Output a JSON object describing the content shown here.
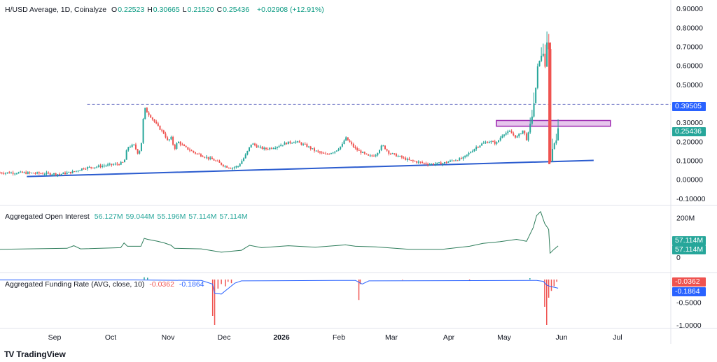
{
  "header": {
    "symbol": "H/USD Average, 1D, Coinalyze",
    "ohlc": [
      {
        "label": "O",
        "value": "0.22523"
      },
      {
        "label": "H",
        "value": "0.30665"
      },
      {
        "label": "L",
        "value": "0.21520"
      },
      {
        "label": "C",
        "value": "0.25436"
      }
    ],
    "change": "+0.02908 (+12.91%)"
  },
  "open_interest_legend": {
    "title": "Aggregated Open Interest",
    "values": [
      "56.127M",
      "59.044M",
      "55.196M",
      "57.114M",
      "57.114M"
    ]
  },
  "funding_legend": {
    "title": "Aggregated Funding Rate (AVG, close, 10)",
    "values": [
      "-0.0362",
      "-0.1864"
    ]
  },
  "price_tags": {
    "level": "0.39505",
    "last": "0.25436",
    "oi_1": "57.114M",
    "oi_2": "57.114M",
    "fr_1": "-0.0362",
    "fr_2": "-0.1864"
  },
  "colors": {
    "up": "#26a69a",
    "down": "#ef5350",
    "trendline": "#2b5ccf",
    "level_dashed": "#7b80c9",
    "zone_fill": "#e6c6ec",
    "zone_border": "#9c27b0",
    "oi_line": "#2e7d5b",
    "funding_avg": "#2962ff",
    "tag_level": "#2962ff",
    "tag_last": "#26a69a",
    "tag_oi": "#26a69a",
    "tag_fr_1": "#ef5350",
    "tag_fr_2": "#2962ff"
  },
  "footer": {
    "brand": "TradingView",
    "logo": "tradingview-logo"
  },
  "chart_data": [
    {
      "type": "candlestick",
      "title": "H/USD Average, 1D, Coinalyze",
      "y_ticks": [
        "0.90000",
        "0.80000",
        "0.70000",
        "0.60000",
        "0.50000",
        "0.30000",
        "0.20000",
        "0.10000",
        "0.00000",
        "-0.10000"
      ],
      "ylim": [
        -0.13,
        0.93
      ],
      "x_ticks": [
        "Sep",
        "Oct",
        "Nov",
        "Dec",
        "2026",
        "Feb",
        "Mar",
        "Apr",
        "May",
        "Jun",
        "Jul"
      ],
      "close_path": [
        [
          0.03,
          0.035
        ],
        [
          0.055,
          0.032
        ],
        [
          0.09,
          0.028
        ],
        [
          0.11,
          0.04
        ],
        [
          0.125,
          0.06
        ],
        [
          0.14,
          0.065
        ],
        [
          0.16,
          0.075
        ],
        [
          0.175,
          0.08
        ],
        [
          0.185,
          0.09
        ],
        [
          0.19,
          0.17
        ],
        [
          0.2,
          0.18
        ],
        [
          0.205,
          0.14
        ],
        [
          0.21,
          0.16
        ],
        [
          0.215,
          0.38
        ],
        [
          0.22,
          0.35
        ],
        [
          0.225,
          0.33
        ],
        [
          0.235,
          0.28
        ],
        [
          0.245,
          0.24
        ],
        [
          0.25,
          0.2
        ],
        [
          0.255,
          0.22
        ],
        [
          0.26,
          0.16
        ],
        [
          0.265,
          0.2
        ],
        [
          0.275,
          0.17
        ],
        [
          0.29,
          0.14
        ],
        [
          0.305,
          0.12
        ],
        [
          0.32,
          0.1
        ],
        [
          0.335,
          0.07
        ],
        [
          0.345,
          0.06
        ],
        [
          0.355,
          0.07
        ],
        [
          0.365,
          0.12
        ],
        [
          0.375,
          0.19
        ],
        [
          0.385,
          0.17
        ],
        [
          0.395,
          0.16
        ],
        [
          0.41,
          0.17
        ],
        [
          0.425,
          0.19
        ],
        [
          0.44,
          0.2
        ],
        [
          0.455,
          0.18
        ],
        [
          0.47,
          0.15
        ],
        [
          0.485,
          0.13
        ],
        [
          0.5,
          0.15
        ],
        [
          0.51,
          0.18
        ],
        [
          0.515,
          0.22
        ],
        [
          0.52,
          0.2
        ],
        [
          0.53,
          0.16
        ],
        [
          0.54,
          0.14
        ],
        [
          0.55,
          0.12
        ],
        [
          0.56,
          0.13
        ],
        [
          0.57,
          0.18
        ],
        [
          0.58,
          0.14
        ],
        [
          0.595,
          0.12
        ],
        [
          0.61,
          0.1
        ],
        [
          0.625,
          0.09
        ],
        [
          0.64,
          0.08
        ],
        [
          0.66,
          0.085
        ],
        [
          0.675,
          0.1
        ],
        [
          0.69,
          0.11
        ],
        [
          0.7,
          0.14
        ],
        [
          0.71,
          0.17
        ],
        [
          0.72,
          0.19
        ],
        [
          0.73,
          0.2
        ],
        [
          0.74,
          0.19
        ],
        [
          0.75,
          0.24
        ],
        [
          0.76,
          0.25
        ],
        [
          0.77,
          0.22
        ],
        [
          0.78,
          0.26
        ],
        [
          0.785,
          0.21
        ],
        [
          0.79,
          0.27
        ],
        [
          0.795,
          0.38
        ],
        [
          0.8,
          0.5
        ],
        [
          0.803,
          0.66
        ],
        [
          0.806,
          0.61
        ],
        [
          0.809,
          0.7
        ],
        [
          0.812,
          0.58
        ],
        [
          0.816,
          0.73
        ],
        [
          0.818,
          0.72
        ],
        [
          0.82,
          0.09
        ],
        [
          0.823,
          0.15
        ],
        [
          0.826,
          0.19
        ],
        [
          0.829,
          0.22
        ],
        [
          0.832,
          0.25436
        ]
      ],
      "annotations": {
        "horizontal_level": 0.39505,
        "resistance_zone": [
          0.28,
          0.31
        ],
        "trendline": [
          [
            0.04,
            0.015
          ],
          [
            0.885,
            0.1
          ]
        ]
      }
    },
    {
      "type": "line",
      "title": "Aggregated Open Interest",
      "y_ticks": [
        "200M",
        "0"
      ],
      "series": [
        {
          "name": "Aggregated Open Interest",
          "values": [
            [
              0.0,
              40
            ],
            [
              0.1,
              45
            ],
            [
              0.11,
              58
            ],
            [
              0.12,
              42
            ],
            [
              0.18,
              48
            ],
            [
              0.185,
              72
            ],
            [
              0.19,
              55
            ],
            [
              0.21,
              55
            ],
            [
              0.215,
              95
            ],
            [
              0.22,
              90
            ],
            [
              0.235,
              80
            ],
            [
              0.245,
              72
            ],
            [
              0.255,
              60
            ],
            [
              0.26,
              45
            ],
            [
              0.3,
              42
            ],
            [
              0.33,
              25
            ],
            [
              0.36,
              35
            ],
            [
              0.372,
              60
            ],
            [
              0.39,
              48
            ],
            [
              0.43,
              58
            ],
            [
              0.47,
              50
            ],
            [
              0.515,
              62
            ],
            [
              0.53,
              55
            ],
            [
              0.56,
              52
            ],
            [
              0.61,
              40
            ],
            [
              0.66,
              40
            ],
            [
              0.7,
              55
            ],
            [
              0.72,
              70
            ],
            [
              0.745,
              78
            ],
            [
              0.77,
              90
            ],
            [
              0.785,
              80
            ],
            [
              0.795,
              150
            ],
            [
              0.8,
              210
            ],
            [
              0.806,
              230
            ],
            [
              0.812,
              170
            ],
            [
              0.818,
              140
            ],
            [
              0.82,
              20
            ],
            [
              0.826,
              40
            ],
            [
              0.832,
              57
            ]
          ]
        }
      ]
    },
    {
      "type": "bar",
      "title": "Aggregated Funding Rate (AVG, close, 10)",
      "y_ticks": [
        "-0.5000",
        "-1.0000"
      ],
      "series": [
        {
          "name": "funding",
          "values": [
            [
              0.215,
              0.05
            ],
            [
              0.22,
              0.04
            ],
            [
              0.317,
              -0.8
            ],
            [
              0.32,
              -1.0
            ],
            [
              0.325,
              -0.2
            ],
            [
              0.33,
              -0.1
            ],
            [
              0.336,
              -0.15
            ],
            [
              0.34,
              -0.05
            ],
            [
              0.345,
              -0.08
            ],
            [
              0.535,
              -0.45
            ],
            [
              0.537,
              -0.1
            ],
            [
              0.6,
              -0.01
            ],
            [
              0.7,
              -0.02
            ],
            [
              0.79,
              0.03
            ],
            [
              0.812,
              -0.6
            ],
            [
              0.815,
              -1.0
            ],
            [
              0.818,
              -0.4
            ],
            [
              0.822,
              -0.25
            ],
            [
              0.826,
              -0.15
            ],
            [
              0.83,
              -0.05
            ]
          ]
        },
        {
          "name": "avg",
          "values": [
            [
              0.0,
              -0.01
            ],
            [
              0.2,
              -0.01
            ],
            [
              0.3,
              -0.02
            ],
            [
              0.317,
              -0.1
            ],
            [
              0.32,
              -0.3
            ],
            [
              0.33,
              -0.32
            ],
            [
              0.34,
              -0.2
            ],
            [
              0.35,
              -0.08
            ],
            [
              0.36,
              -0.03
            ],
            [
              0.5,
              -0.02
            ],
            [
              0.53,
              -0.02
            ],
            [
              0.54,
              -0.1
            ],
            [
              0.55,
              -0.03
            ],
            [
              0.8,
              -0.02
            ],
            [
              0.81,
              -0.04
            ],
            [
              0.815,
              -0.12
            ],
            [
              0.82,
              -0.15
            ],
            [
              0.832,
              -0.19
            ]
          ]
        }
      ]
    }
  ]
}
